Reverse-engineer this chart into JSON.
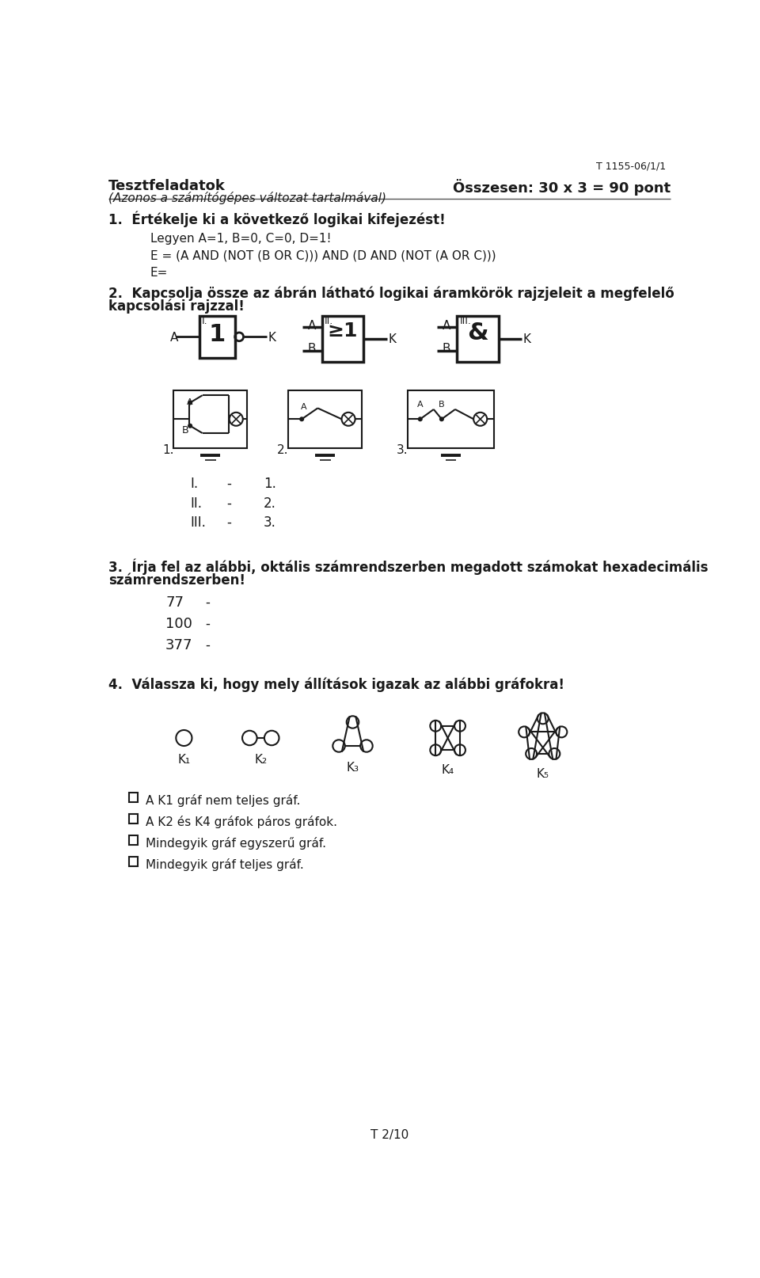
{
  "bg_color": "#ffffff",
  "text_color": "#1a1a1a",
  "page_ref": "T 1155-06/1/1",
  "header_left_bold": "Tesztfeladatok",
  "header_left_italic": "(Azonos a számítógépes változat tartalmával)",
  "header_right": "Összesen: 30 x 3 = 90 pont",
  "q1_bold": "1.  Értékelje ki a következő logikai kifejezést!",
  "q1_line1": "Legyen A=1, B=0, C=0, D=1!",
  "q1_line2": "E = (A AND (NOT (B OR C))) AND (D AND (NOT (A OR C)))",
  "q1_line3": "E=",
  "q2_bold": "2.  Kapcsolja össze az ábrán látható logikai áramkörök rajzjeleit a megfelelő",
  "q2_bold2": "kapcsolási rajzzal!",
  "q3_bold": "3.  Írja fel az alábbi, oktális számrendszerben megadott számokat hexadecimális",
  "q3_bold2": "számrendszerben!",
  "q4_bold": "4.  Válassza ki, hogy mely állítások igazak az alábbi gráfokra!",
  "q4_graph_labels": [
    "K₁",
    "K₂",
    "K₃",
    "K₄",
    "K₅"
  ],
  "q4_options": [
    "A K1 gráf nem teljes gráf.",
    "A K2 és K4 gráfok páros gráfok.",
    "Mindegyik gráf egyszerű gráf.",
    "Mindegyik gráf teljes gráf."
  ],
  "footer": "T 2/10"
}
